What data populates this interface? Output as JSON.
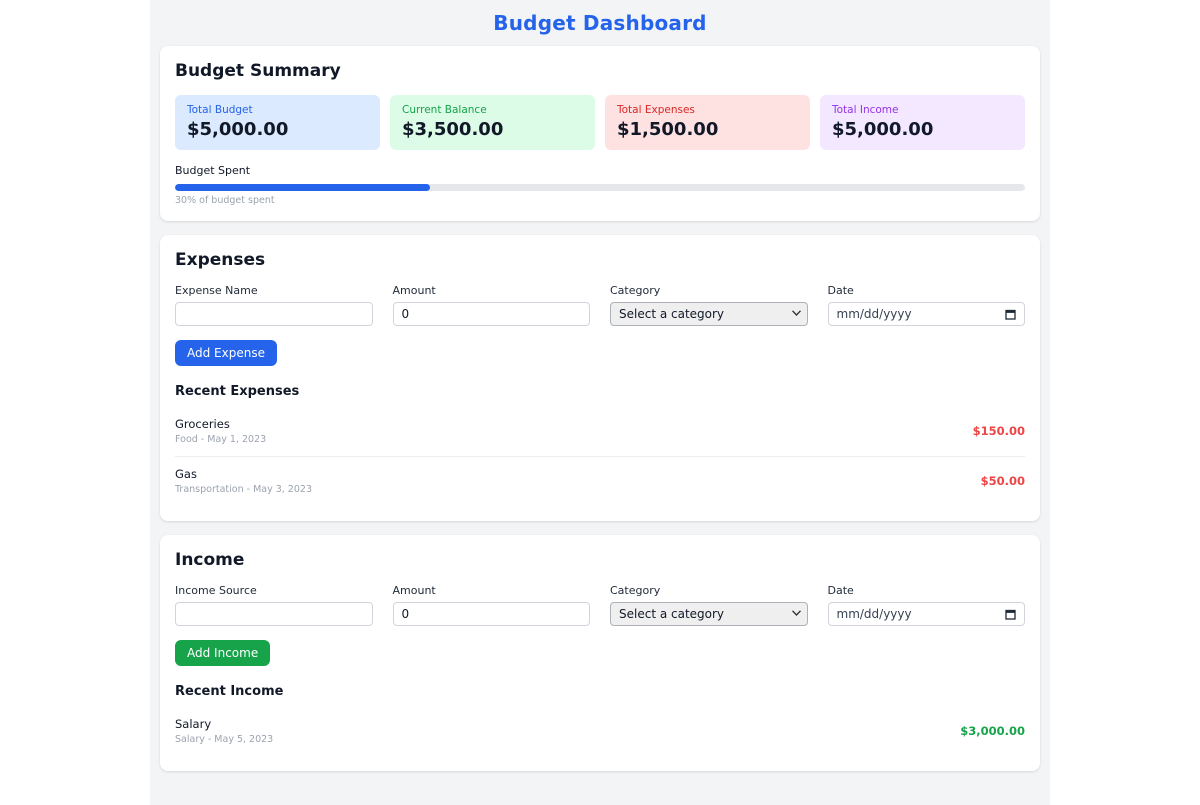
{
  "page": {
    "title": "Budget Dashboard",
    "accent_color": "#2563eb"
  },
  "summary": {
    "heading": "Budget Summary",
    "cards": [
      {
        "label": "Total Budget",
        "value": "$5,000.00",
        "bg": "#dbeafe",
        "label_color": "#2563eb"
      },
      {
        "label": "Current Balance",
        "value": "$3,500.00",
        "bg": "#dcfce7",
        "label_color": "#16a34a"
      },
      {
        "label": "Total Expenses",
        "value": "$1,500.00",
        "bg": "#fee2e2",
        "label_color": "#dc2626"
      },
      {
        "label": "Total Income",
        "value": "$5,000.00",
        "bg": "#f3e8ff",
        "label_color": "#9333ea"
      }
    ],
    "progress": {
      "label": "Budget Spent",
      "percent": 30,
      "caption": "30% of budget spent",
      "bar_color": "#2563eb",
      "track_color": "#e5e7eb"
    }
  },
  "expenses": {
    "heading": "Expenses",
    "form": {
      "name_label": "Expense Name",
      "name_value": "",
      "amount_label": "Amount",
      "amount_value": "0",
      "category_label": "Category",
      "category_value": "Select a category",
      "date_label": "Date",
      "date_placeholder": "mm/dd/yyyy",
      "submit_label": "Add Expense",
      "button_color": "#2563eb"
    },
    "recent_heading": "Recent Expenses",
    "amount_color": "#ef4444",
    "items": [
      {
        "name": "Groceries",
        "meta": "Food - May 1, 2023",
        "amount": "$150.00"
      },
      {
        "name": "Gas",
        "meta": "Transportation - May 3, 2023",
        "amount": "$50.00"
      }
    ]
  },
  "income": {
    "heading": "Income",
    "form": {
      "name_label": "Income Source",
      "name_value": "",
      "amount_label": "Amount",
      "amount_value": "0",
      "category_label": "Category",
      "category_value": "Select a category",
      "date_label": "Date",
      "date_placeholder": "mm/dd/yyyy",
      "submit_label": "Add Income",
      "button_color": "#16a34a"
    },
    "recent_heading": "Recent Income",
    "amount_color": "#16a34a",
    "items": [
      {
        "name": "Salary",
        "meta": "Salary - May 5, 2023",
        "amount": "$3,000.00"
      }
    ]
  }
}
